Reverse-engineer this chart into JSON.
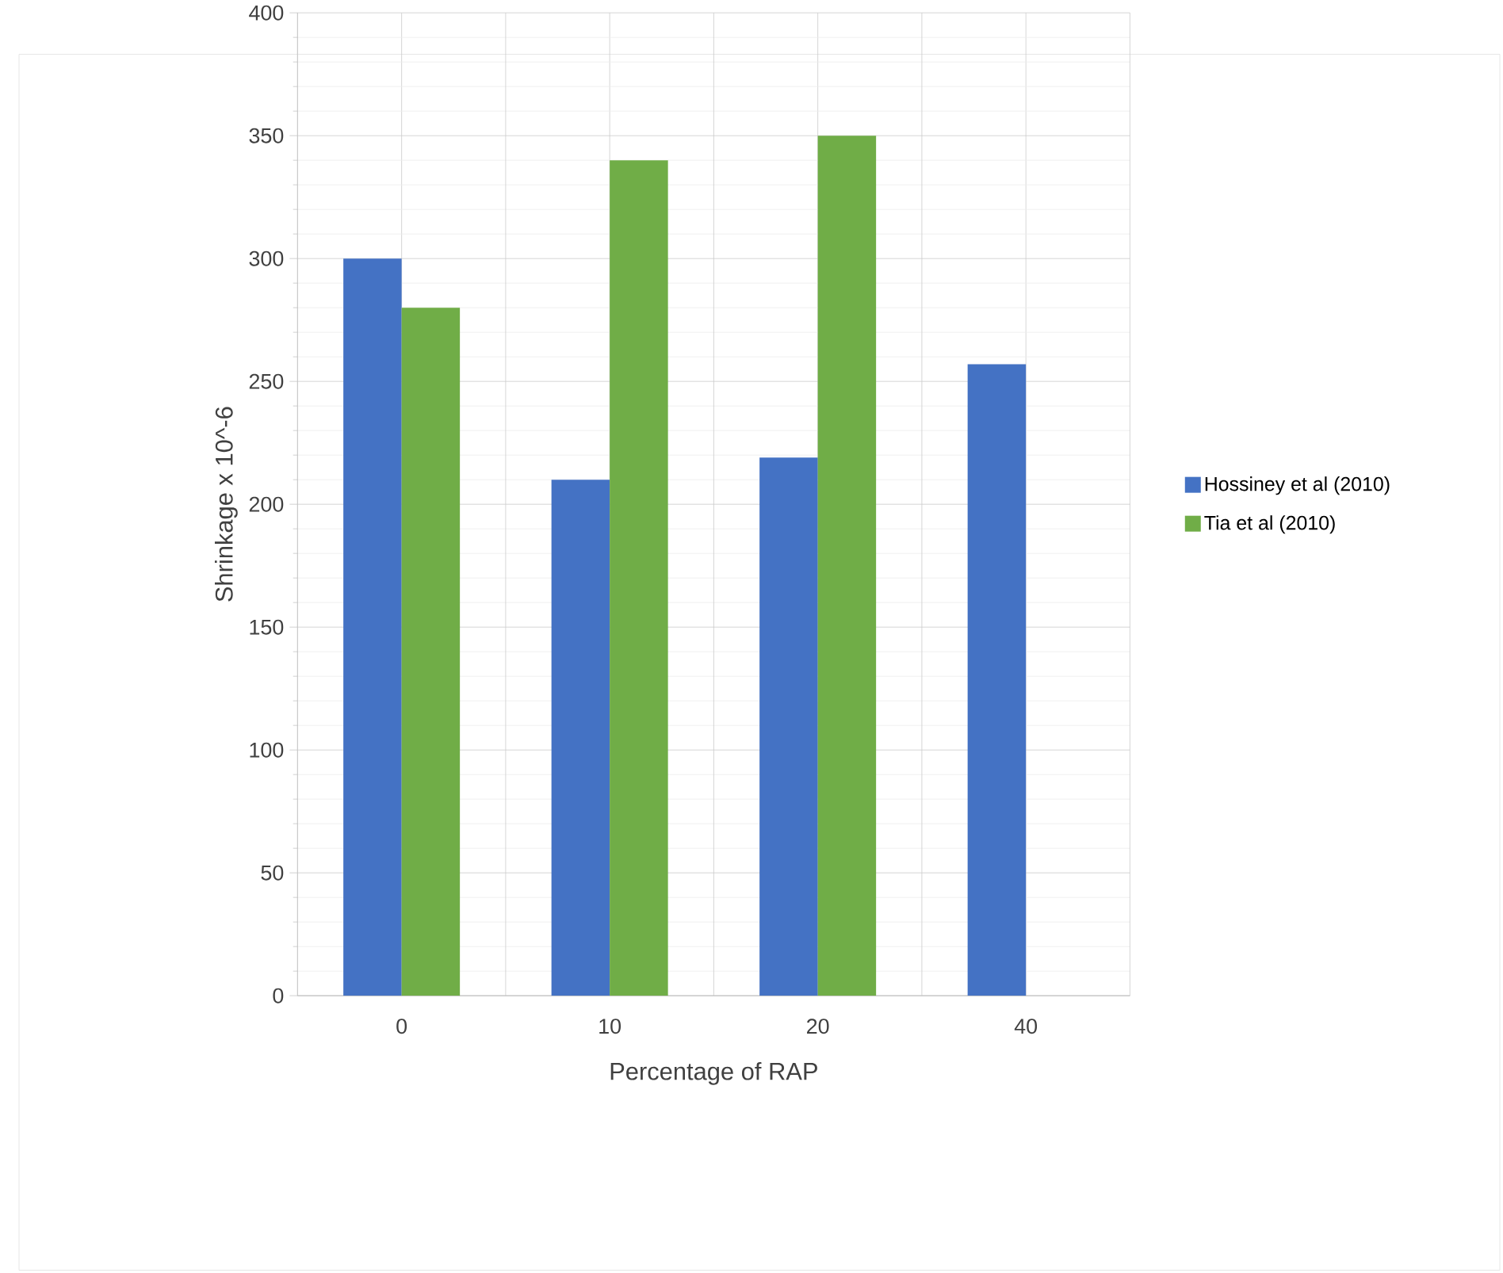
{
  "chart_data": {
    "type": "bar",
    "xlabel": "Percentage of RAP",
    "ylabel": "Shrinkage x 10^-6",
    "categories": [
      "0",
      "10",
      "20",
      "40"
    ],
    "series": [
      {
        "name": "Hossiney et al (2010)",
        "color": "#4472c4",
        "values": [
          300,
          210,
          219,
          257
        ]
      },
      {
        "name": "Tia et al (2010)",
        "color": "#70ad47",
        "values": [
          280,
          340,
          350,
          null
        ]
      }
    ],
    "ylim": [
      0,
      400
    ],
    "yticks": [
      0,
      50,
      100,
      150,
      200,
      250,
      300,
      350,
      400
    ],
    "grid": true,
    "legend": "right"
  }
}
